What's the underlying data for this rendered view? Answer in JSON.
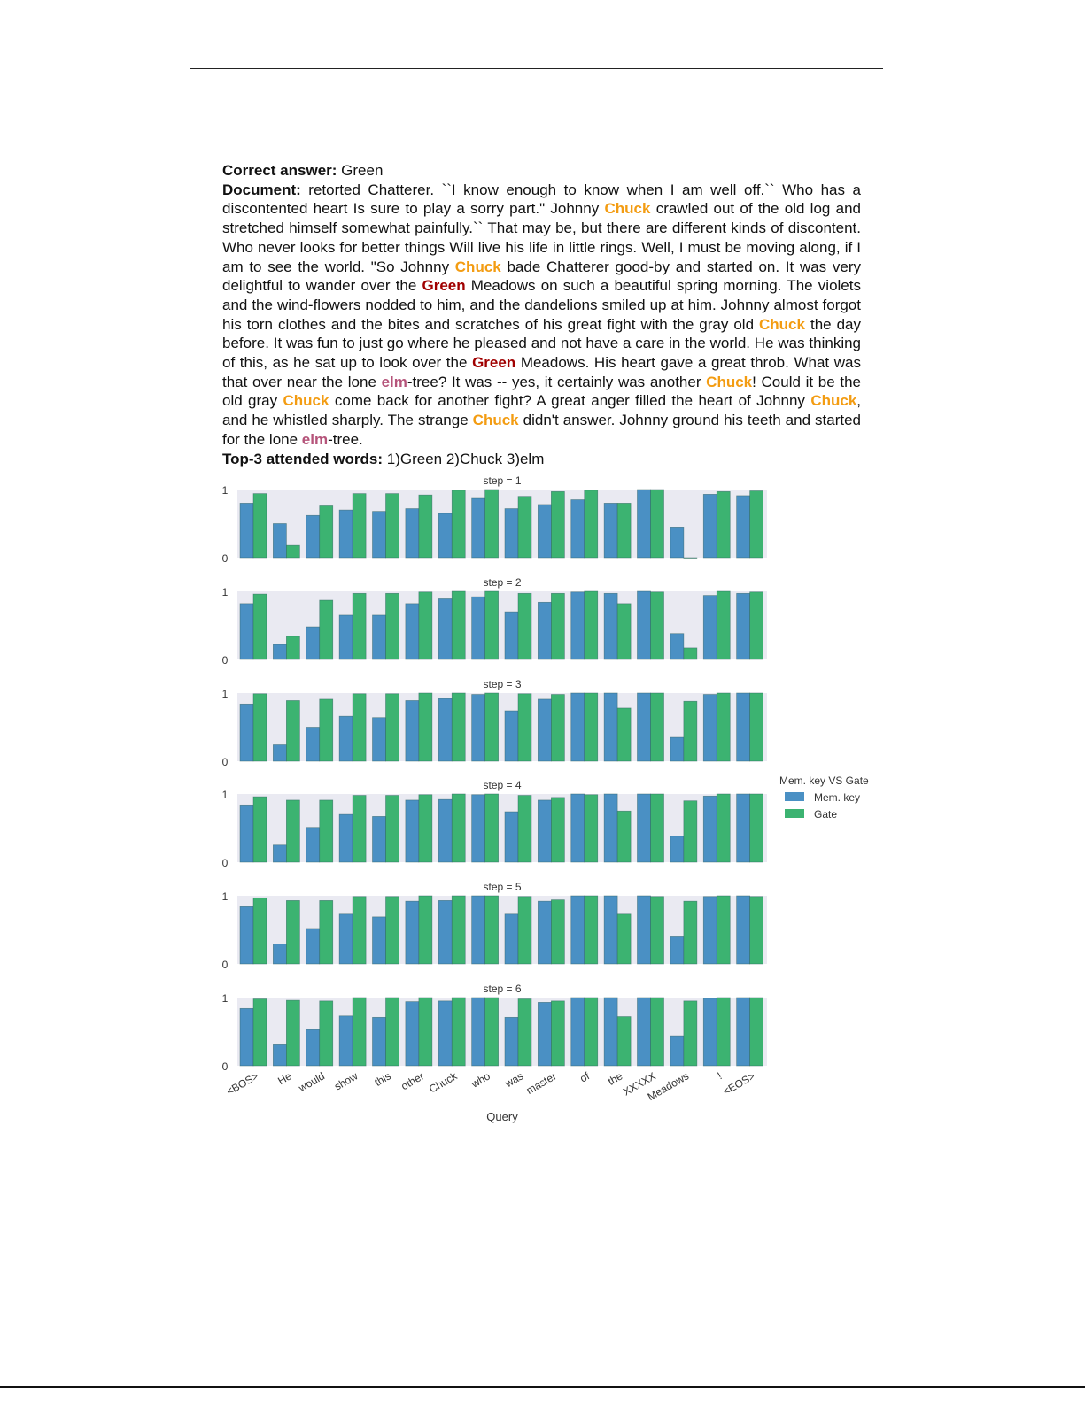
{
  "correct_answer": {
    "label": "Correct answer:",
    "value": "Green"
  },
  "document": {
    "label": "Document:",
    "segments": [
      {
        "t": " retorted Chatterer. ``I know enough to know when I am well off.`` Who has a discontented heart Is sure to play a sorry part.\" Johnny ",
        "hl": ""
      },
      {
        "t": "Chuck",
        "hl": "chuck"
      },
      {
        "t": " crawled out of the old log and stretched himself somewhat painfully.`` That may be, but there are different kinds of discontent. Who never looks for better things Will live his life in little rings. Well, I must be moving along, if I am to see the world. \"So Johnny ",
        "hl": ""
      },
      {
        "t": "Chuck",
        "hl": "chuck"
      },
      {
        "t": " bade Chatterer good-by and started on. It was very delightful to wander over the ",
        "hl": ""
      },
      {
        "t": "Green",
        "hl": "green"
      },
      {
        "t": " Meadows on such a beautiful spring morning. The violets and the wind-flowers nodded to him, and the dandelions smiled up at him. Johnny almost forgot his torn clothes and the bites and scratches of his great fight with the gray old ",
        "hl": ""
      },
      {
        "t": "Chuck",
        "hl": "chuck"
      },
      {
        "t": " the day before. It was fun to just go where he pleased and not have a care in the world. He was thinking of this, as he sat up to look over the ",
        "hl": ""
      },
      {
        "t": "Green",
        "hl": "green"
      },
      {
        "t": " Meadows. His heart gave a great throb. What was that over near the lone ",
        "hl": ""
      },
      {
        "t": "elm",
        "hl": "elm"
      },
      {
        "t": "-tree? It was -- yes, it certainly was another ",
        "hl": ""
      },
      {
        "t": "Chuck",
        "hl": "chuck"
      },
      {
        "t": "! Could it be the old gray ",
        "hl": ""
      },
      {
        "t": "Chuck",
        "hl": "chuck"
      },
      {
        "t": " come back for another fight? A great anger filled the heart of Johnny ",
        "hl": ""
      },
      {
        "t": "Chuck",
        "hl": "chuck"
      },
      {
        "t": ", and he whistled sharply. The strange ",
        "hl": ""
      },
      {
        "t": "Chuck",
        "hl": "chuck"
      },
      {
        "t": " didn't answer. Johnny ground his teeth and started for the lone ",
        "hl": ""
      },
      {
        "t": "elm",
        "hl": "elm"
      },
      {
        "t": "-tree.",
        "hl": ""
      }
    ]
  },
  "top3": {
    "label": "Top-3 attended words:",
    "value": "1)Green 2)Chuck 3)elm"
  },
  "highlight_colors": {
    "chuck": "#f39c12",
    "green": "#a00000",
    "elm": "#b5547a"
  },
  "chart_data": {
    "type": "bar",
    "xlabel": "Query",
    "ylim": [
      0,
      1
    ],
    "yticks": [
      "0",
      "1"
    ],
    "grid": false,
    "legend": {
      "title": "Mem. key VS Gate",
      "placement": "right",
      "entries": [
        "Mem. key",
        "Gate"
      ]
    },
    "colors": {
      "Mem. key": "#4a90c4",
      "Gate": "#3cb371",
      "background": "#eaeaf2"
    },
    "categories": [
      "<BOS>",
      "He",
      "would",
      "show",
      "this",
      "other",
      "Chuck",
      "who",
      "was",
      "master",
      "of",
      "the",
      "XXXXX",
      "Meadows",
      "!",
      "<EOS>"
    ],
    "panels": [
      {
        "title": "step = 1",
        "series": [
          {
            "name": "Mem. key",
            "values": [
              0.8,
              0.5,
              0.62,
              0.7,
              0.68,
              0.72,
              0.65,
              0.87,
              0.72,
              0.78,
              0.85,
              0.8,
              1.0,
              0.45,
              0.93,
              0.91
            ]
          },
          {
            "name": "Gate",
            "values": [
              0.94,
              0.18,
              0.76,
              0.94,
              0.94,
              0.92,
              0.99,
              1.0,
              0.9,
              0.97,
              0.99,
              0.8,
              1.0,
              0.0,
              0.97,
              0.98
            ]
          }
        ]
      },
      {
        "title": "step = 2",
        "series": [
          {
            "name": "Mem. key",
            "values": [
              0.82,
              0.22,
              0.48,
              0.65,
              0.65,
              0.82,
              0.89,
              0.92,
              0.7,
              0.84,
              0.99,
              0.97,
              1.0,
              0.38,
              0.94,
              0.97
            ]
          },
          {
            "name": "Gate",
            "values": [
              0.96,
              0.34,
              0.87,
              0.97,
              0.97,
              0.99,
              1.0,
              1.0,
              0.97,
              0.97,
              1.0,
              0.82,
              0.99,
              0.17,
              1.0,
              0.99
            ]
          }
        ]
      },
      {
        "title": "step = 3",
        "series": [
          {
            "name": "Mem. key",
            "values": [
              0.84,
              0.24,
              0.5,
              0.66,
              0.64,
              0.89,
              0.92,
              0.98,
              0.74,
              0.91,
              1.0,
              1.0,
              1.0,
              0.35,
              0.98,
              1.0
            ]
          },
          {
            "name": "Gate",
            "values": [
              0.99,
              0.89,
              0.91,
              0.99,
              0.99,
              1.0,
              1.0,
              1.0,
              0.99,
              0.98,
              1.0,
              0.78,
              1.0,
              0.88,
              1.0,
              1.0
            ]
          }
        ]
      },
      {
        "title": "step = 4",
        "series": [
          {
            "name": "Mem. key",
            "values": [
              0.84,
              0.25,
              0.51,
              0.7,
              0.67,
              0.91,
              0.92,
              0.99,
              0.74,
              0.91,
              1.0,
              1.0,
              1.0,
              0.38,
              0.97,
              1.0
            ]
          },
          {
            "name": "Gate",
            "values": [
              0.96,
              0.91,
              0.91,
              0.98,
              0.98,
              0.99,
              1.0,
              1.0,
              0.98,
              0.95,
              0.99,
              0.75,
              1.0,
              0.9,
              1.0,
              1.0
            ]
          }
        ]
      },
      {
        "title": "step = 5",
        "series": [
          {
            "name": "Mem. key",
            "values": [
              0.84,
              0.29,
              0.52,
              0.73,
              0.69,
              0.92,
              0.93,
              1.0,
              0.73,
              0.92,
              1.0,
              1.0,
              1.0,
              0.41,
              0.99,
              1.0
            ]
          },
          {
            "name": "Gate",
            "values": [
              0.97,
              0.93,
              0.93,
              0.99,
              0.99,
              1.0,
              1.0,
              1.0,
              0.99,
              0.94,
              1.0,
              0.73,
              0.99,
              0.92,
              1.0,
              0.99
            ]
          }
        ]
      },
      {
        "title": "step = 6",
        "series": [
          {
            "name": "Mem. key",
            "values": [
              0.84,
              0.32,
              0.53,
              0.73,
              0.71,
              0.94,
              0.95,
              1.0,
              0.71,
              0.93,
              1.0,
              1.0,
              1.0,
              0.44,
              0.99,
              1.0
            ]
          },
          {
            "name": "Gate",
            "values": [
              0.98,
              0.96,
              0.95,
              1.0,
              1.0,
              1.0,
              1.0,
              1.0,
              0.98,
              0.95,
              1.0,
              0.72,
              1.0,
              0.95,
              1.0,
              1.0
            ]
          }
        ]
      }
    ]
  }
}
